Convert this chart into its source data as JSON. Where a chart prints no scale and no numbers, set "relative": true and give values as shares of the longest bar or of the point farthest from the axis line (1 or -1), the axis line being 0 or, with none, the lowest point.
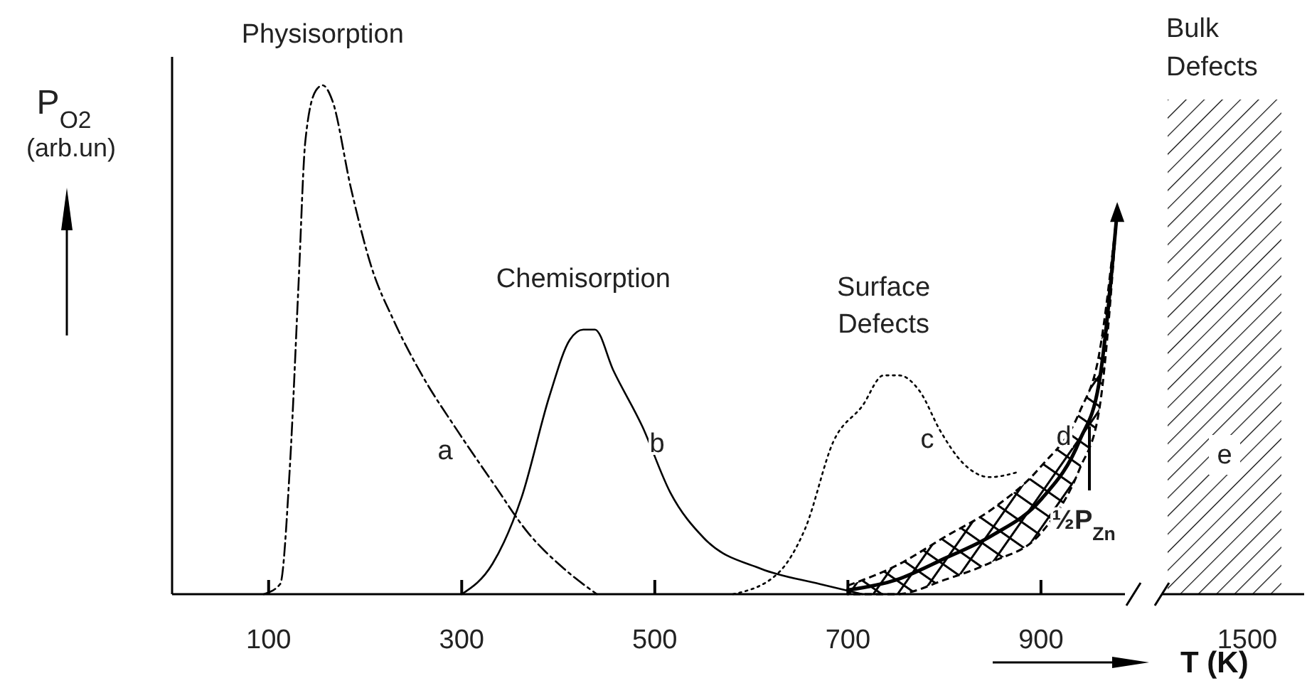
{
  "chart_data": [
    {
      "type": "line",
      "relative": true,
      "ylabel": "P$_{O2}$ (arb.un)",
      "xlim": [
        0,
        987
      ],
      "xticks": [
        100,
        300,
        500,
        700,
        900
      ],
      "series": [
        {
          "name": "Physisorption",
          "color": "#000000",
          "line_style": "dashed",
          "x": [
            95,
            112,
            122,
            131,
            138,
            149,
            156,
            166,
            185,
            207,
            229,
            259,
            296,
            332,
            369,
            406,
            440
          ],
          "values": [
            0,
            0.02,
            0.25,
            0.61,
            0.89,
            0.99,
            1,
            0.97,
            0.8,
            0.64,
            0.54,
            0.43,
            0.32,
            0.22,
            0.12,
            0.05,
            0
          ]
        },
        {
          "name": "Chemisorption",
          "color": "#000000",
          "line_style": "solid",
          "x": [
            300,
            332,
            362,
            391,
            412,
            426,
            438,
            457,
            487,
            516,
            551,
            610,
            671,
            715
          ],
          "values": [
            0,
            0.06,
            0.19,
            0.39,
            0.5,
            0.52,
            0.52,
            0.44,
            0.33,
            0.2,
            0.11,
            0.05,
            0.02,
            0
          ]
        },
        {
          "name": "Surface Defects",
          "color": "#000000",
          "line_style": "dotted",
          "x": [
            581,
            627,
            656,
            685,
            715,
            737,
            753,
            774,
            796,
            818,
            847,
            876
          ],
          "values": [
            0,
            0.04,
            0.13,
            0.3,
            0.37,
            0.43,
            0.43,
            0.4,
            0.32,
            0.26,
            0.23,
            0.24
          ]
        },
        {
          "color": "#000000",
          "line_style": "solid",
          "x": [
            700,
            750,
            800,
            850,
            900,
            940,
            960,
            979
          ],
          "values": [
            0.008,
            0.028,
            0.07,
            0.116,
            0.186,
            0.302,
            0.413,
            0.754
          ],
          "lower": [
            0,
            0,
            0.028,
            0.064,
            0.12,
            0.246,
            0.358,
            0.754
          ],
          "upper": [
            0.017,
            0.056,
            0.112,
            0.168,
            0.251,
            0.358,
            0.469,
            0.754
          ]
        }
      ],
      "annotations": [
        "a",
        "b",
        "c",
        "d",
        "½P$_{Zn}$"
      ]
    },
    {
      "type": "other",
      "xlabel": "T (K)",
      "annotations": [
        "Bulk Defects",
        "e",
        "1500"
      ]
    }
  ]
}
